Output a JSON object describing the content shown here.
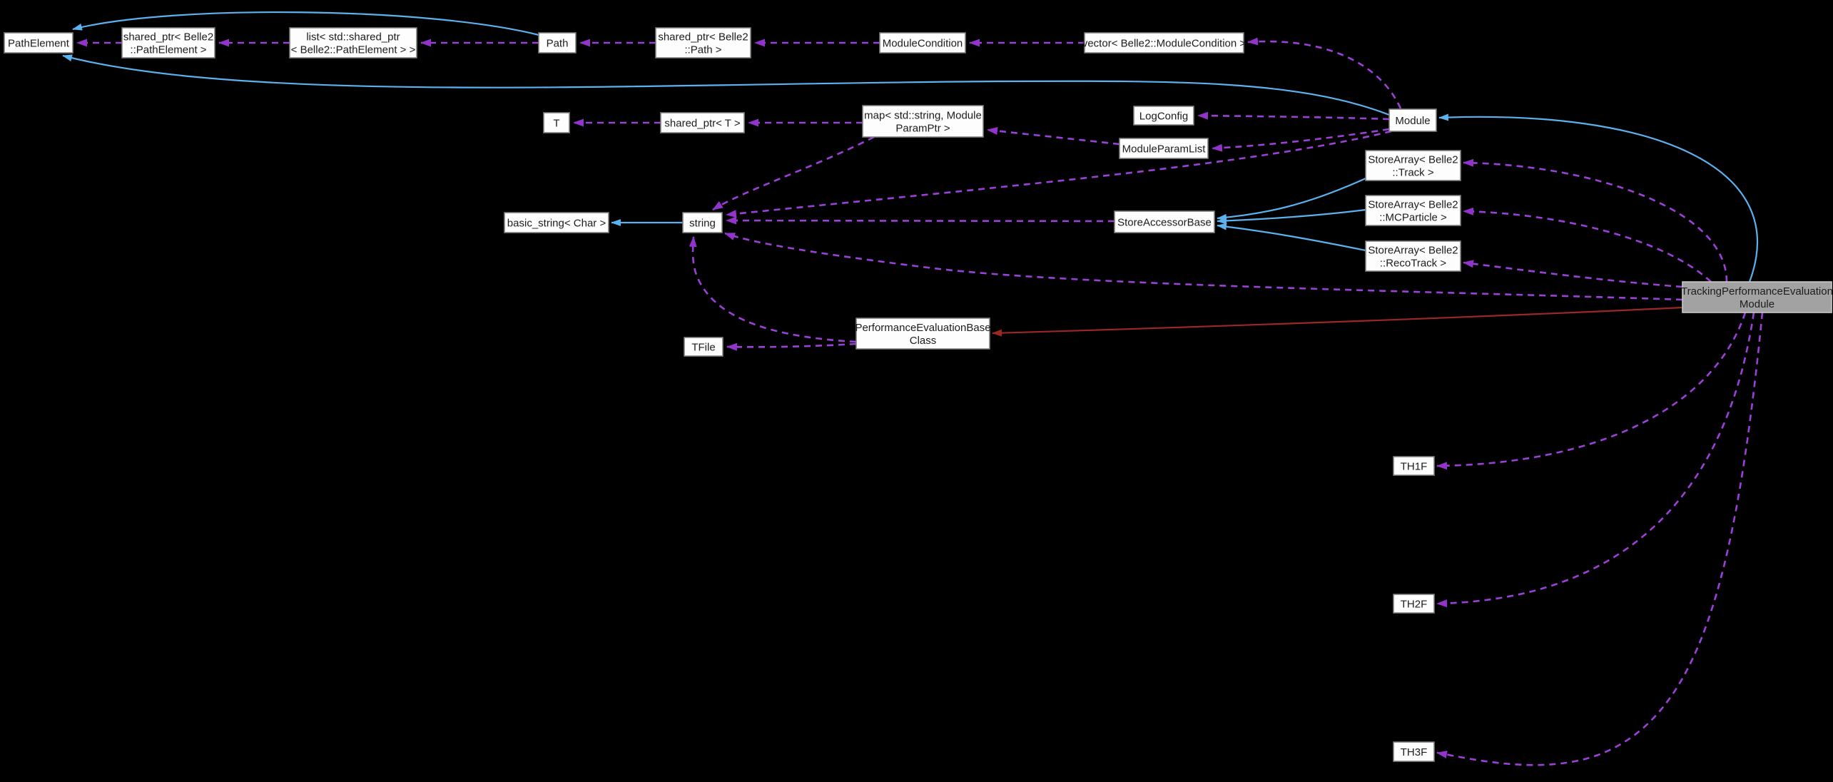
{
  "diagram": {
    "type": "doxygen-collaboration-graph",
    "background": "#000000",
    "colors": {
      "node_fill": "#FDFDFD",
      "node_border": "#7F7F7F",
      "node_text": "#1C1C1C",
      "highlight_fill": "#A2A2A2",
      "highlight_border": "#C6C6C6",
      "usage_edge": "#9C40D8",
      "inherit_edge": "#5CB1EF",
      "private_inherit_edge": "#9C2724"
    },
    "nodes": [
      {
        "id": "pathelement",
        "lines": [
          "PathElement"
        ],
        "highlight": false
      },
      {
        "id": "sp_pathelement",
        "lines": [
          "shared_ptr< Belle2",
          "::PathElement >"
        ],
        "highlight": false
      },
      {
        "id": "list_sp",
        "lines": [
          "list< std::shared_ptr",
          "< Belle2::PathElement > >"
        ],
        "highlight": false
      },
      {
        "id": "path",
        "lines": [
          "Path"
        ],
        "highlight": false
      },
      {
        "id": "sp_path",
        "lines": [
          "shared_ptr< Belle2",
          "::Path >"
        ],
        "highlight": false
      },
      {
        "id": "modulecondition",
        "lines": [
          "ModuleCondition"
        ],
        "highlight": false
      },
      {
        "id": "vector_mc",
        "lines": [
          "vector< Belle2::ModuleCondition >"
        ],
        "highlight": false
      },
      {
        "id": "t",
        "lines": [
          "T"
        ],
        "highlight": false
      },
      {
        "id": "sp_t",
        "lines": [
          "shared_ptr< T >"
        ],
        "highlight": false
      },
      {
        "id": "map",
        "lines": [
          "map< std::string, Module",
          "ParamPtr >"
        ],
        "highlight": false
      },
      {
        "id": "logconfig",
        "lines": [
          "LogConfig"
        ],
        "highlight": false
      },
      {
        "id": "module",
        "lines": [
          "Module"
        ],
        "highlight": false
      },
      {
        "id": "moduleparamlist",
        "lines": [
          "ModuleParamList"
        ],
        "highlight": false
      },
      {
        "id": "sa_track",
        "lines": [
          "StoreArray< Belle2",
          "::Track >"
        ],
        "highlight": false
      },
      {
        "id": "sa_mcparticle",
        "lines": [
          "StoreArray< Belle2",
          "::MCParticle >"
        ],
        "highlight": false
      },
      {
        "id": "sa_recotrack",
        "lines": [
          "StoreArray< Belle2",
          "::RecoTrack >"
        ],
        "highlight": false
      },
      {
        "id": "basic_string",
        "lines": [
          "basic_string< Char >"
        ],
        "highlight": false
      },
      {
        "id": "string",
        "lines": [
          "string"
        ],
        "highlight": false
      },
      {
        "id": "storeaccessorbase",
        "lines": [
          "StoreAccessorBase"
        ],
        "highlight": false
      },
      {
        "id": "tfile",
        "lines": [
          "TFile"
        ],
        "highlight": false
      },
      {
        "id": "pebc",
        "lines": [
          "PerformanceEvaluationBase",
          "Class"
        ],
        "highlight": false
      },
      {
        "id": "tpem",
        "lines": [
          "TrackingPerformanceEvaluation",
          "Module"
        ],
        "highlight": true
      },
      {
        "id": "th1f",
        "lines": [
          "TH1F"
        ],
        "highlight": false
      },
      {
        "id": "th2f",
        "lines": [
          "TH2F"
        ],
        "highlight": false
      },
      {
        "id": "th3f",
        "lines": [
          "TH3F"
        ],
        "highlight": false
      }
    ],
    "edges": [
      {
        "from": "sp_pathelement",
        "to": "pathelement",
        "kind": "uses"
      },
      {
        "from": "list_sp",
        "to": "sp_pathelement",
        "kind": "uses"
      },
      {
        "from": "path",
        "to": "list_sp",
        "kind": "uses"
      },
      {
        "from": "sp_path",
        "to": "path",
        "kind": "uses"
      },
      {
        "from": "modulecondition",
        "to": "sp_path",
        "kind": "uses"
      },
      {
        "from": "vector_mc",
        "to": "modulecondition",
        "kind": "uses"
      },
      {
        "from": "module",
        "to": "vector_mc",
        "kind": "uses"
      },
      {
        "from": "sp_t",
        "to": "t",
        "kind": "uses"
      },
      {
        "from": "map",
        "to": "sp_t",
        "kind": "uses"
      },
      {
        "from": "moduleparamlist",
        "to": "map",
        "kind": "uses"
      },
      {
        "from": "module",
        "to": "logconfig",
        "kind": "uses"
      },
      {
        "from": "module",
        "to": "moduleparamlist",
        "kind": "uses"
      },
      {
        "from": "module",
        "to": "string",
        "kind": "uses"
      },
      {
        "from": "map",
        "to": "string",
        "kind": "uses"
      },
      {
        "from": "storeaccessorbase",
        "to": "string",
        "kind": "uses"
      },
      {
        "from": "tpem",
        "to": "string",
        "kind": "uses"
      },
      {
        "from": "pebc",
        "to": "tfile",
        "kind": "uses"
      },
      {
        "from": "pebc",
        "to": "string",
        "kind": "uses"
      },
      {
        "from": "tpem",
        "to": "sa_track",
        "kind": "uses"
      },
      {
        "from": "tpem",
        "to": "sa_mcparticle",
        "kind": "uses"
      },
      {
        "from": "tpem",
        "to": "sa_recotrack",
        "kind": "uses"
      },
      {
        "from": "tpem",
        "to": "th1f",
        "kind": "uses"
      },
      {
        "from": "tpem",
        "to": "th2f",
        "kind": "uses"
      },
      {
        "from": "tpem",
        "to": "th3f",
        "kind": "uses"
      },
      {
        "from": "path",
        "to": "pathelement",
        "kind": "inherits"
      },
      {
        "from": "module",
        "to": "pathelement",
        "kind": "inherits"
      },
      {
        "from": "tpem",
        "to": "module",
        "kind": "inherits"
      },
      {
        "from": "string",
        "to": "basic_string",
        "kind": "inherits"
      },
      {
        "from": "sa_track",
        "to": "storeaccessorbase",
        "kind": "inherits"
      },
      {
        "from": "sa_mcparticle",
        "to": "storeaccessorbase",
        "kind": "inherits"
      },
      {
        "from": "sa_recotrack",
        "to": "storeaccessorbase",
        "kind": "inherits"
      },
      {
        "from": "tpem",
        "to": "pebc",
        "kind": "inherits-private"
      }
    ]
  }
}
